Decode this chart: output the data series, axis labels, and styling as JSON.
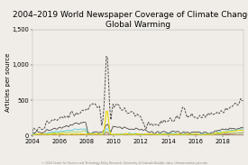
{
  "title": "2004–2019 World Newspaper Coverage of Climate Change or\nGlobal Warming",
  "ylabel": "Articles per source",
  "xlim": [
    2004,
    2019.5
  ],
  "ylim": [
    0,
    1500
  ],
  "yticks": [
    0,
    500,
    1000,
    1500
  ],
  "ytick_labels": [
    "0",
    "500",
    "1,000",
    "1,500"
  ],
  "xticks": [
    2004,
    2006,
    2008,
    2010,
    2012,
    2014,
    2016,
    2018
  ],
  "background_color": "#f0ede8",
  "plot_bg_color": "#f0ede8",
  "grid_color": "#d0ccc5",
  "series_colors": {
    "Africa": "#4472c4",
    "Asia": "#c0504d",
    "Europe": "#1a1a1a",
    "Middle East": "#7b3535",
    "North America": "#4ec8d4",
    "Oceania": "#92d050",
    "Central/South America": "#c8a060",
    "Wire Services": "#e8d800",
    "All Sources Combined": "#555555"
  },
  "title_fontsize": 6.5,
  "axis_fontsize": 5,
  "tick_fontsize": 4.8,
  "legend_fontsize": 4.3
}
